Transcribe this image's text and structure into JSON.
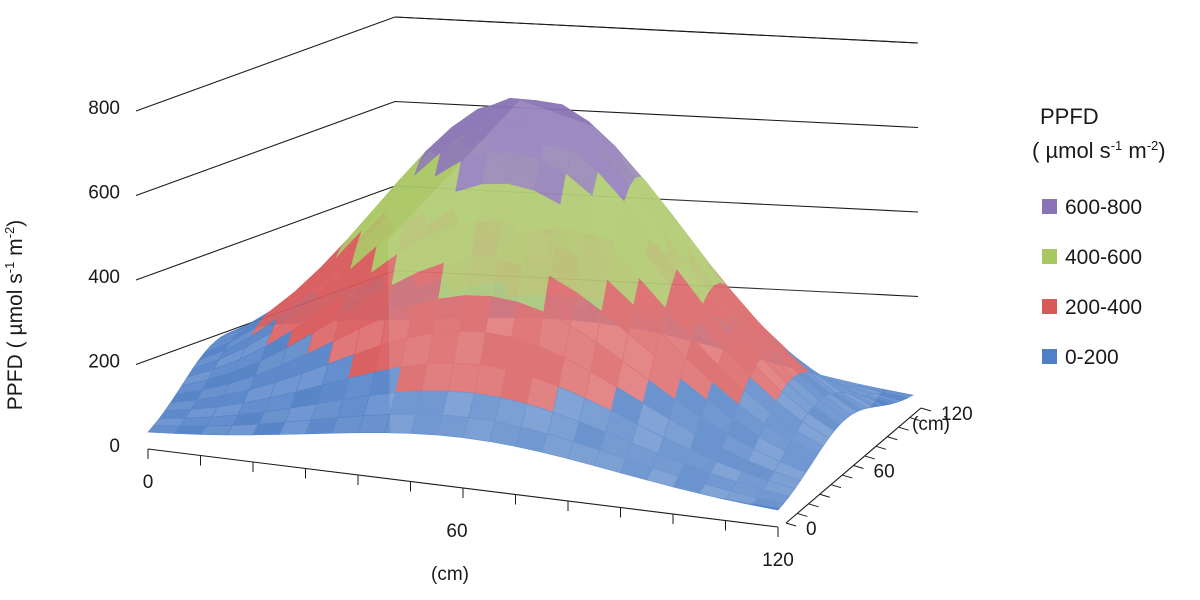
{
  "chart_data": {
    "type": "surface",
    "title": "",
    "zlabel": {
      "prefix": "PPFD ( µmol s",
      "sup1": "-1",
      "mid": "  m",
      "sup2": "-2",
      "suffix": ")"
    },
    "xlabel": "(cm)",
    "ylabel": "(cm)",
    "x_ticks": [
      {
        "value": 0,
        "label": "0"
      },
      {
        "value": 60,
        "label": "60"
      },
      {
        "value": 120,
        "label": "120"
      }
    ],
    "y_ticks": [
      {
        "value": 0,
        "label": "0"
      },
      {
        "value": 60,
        "label": "60"
      },
      {
        "value": 120,
        "label": "120"
      }
    ],
    "z_ticks": [
      {
        "value": 0,
        "label": "0"
      },
      {
        "value": 200,
        "label": "200"
      },
      {
        "value": 400,
        "label": "400"
      },
      {
        "value": 600,
        "label": "600"
      },
      {
        "value": 800,
        "label": "800"
      }
    ],
    "xlim": [
      0,
      120
    ],
    "ylim": [
      0,
      120
    ],
    "zlim": [
      0,
      800
    ],
    "peak": {
      "x": 60,
      "y": 60,
      "z": 760
    },
    "grid": true,
    "legend": {
      "placement": "right",
      "title": {
        "line1": "PPFD",
        "line2_prefix": "( µmol s",
        "sup1": "-1",
        "line2_mid": "  m",
        "sup2": "-2",
        "line2_suffix": ")"
      },
      "items": [
        {
          "label": "600-800",
          "color": "#8a73b5",
          "range": [
            600,
            800
          ]
        },
        {
          "label": "400-600",
          "color": "#a9c763",
          "range": [
            400,
            600
          ]
        },
        {
          "label": "200-400",
          "color": "#d8595a",
          "range": [
            200,
            400
          ]
        },
        {
          "label": "0-200",
          "color": "#4f7fc6",
          "range": [
            0,
            200
          ]
        }
      ]
    }
  }
}
